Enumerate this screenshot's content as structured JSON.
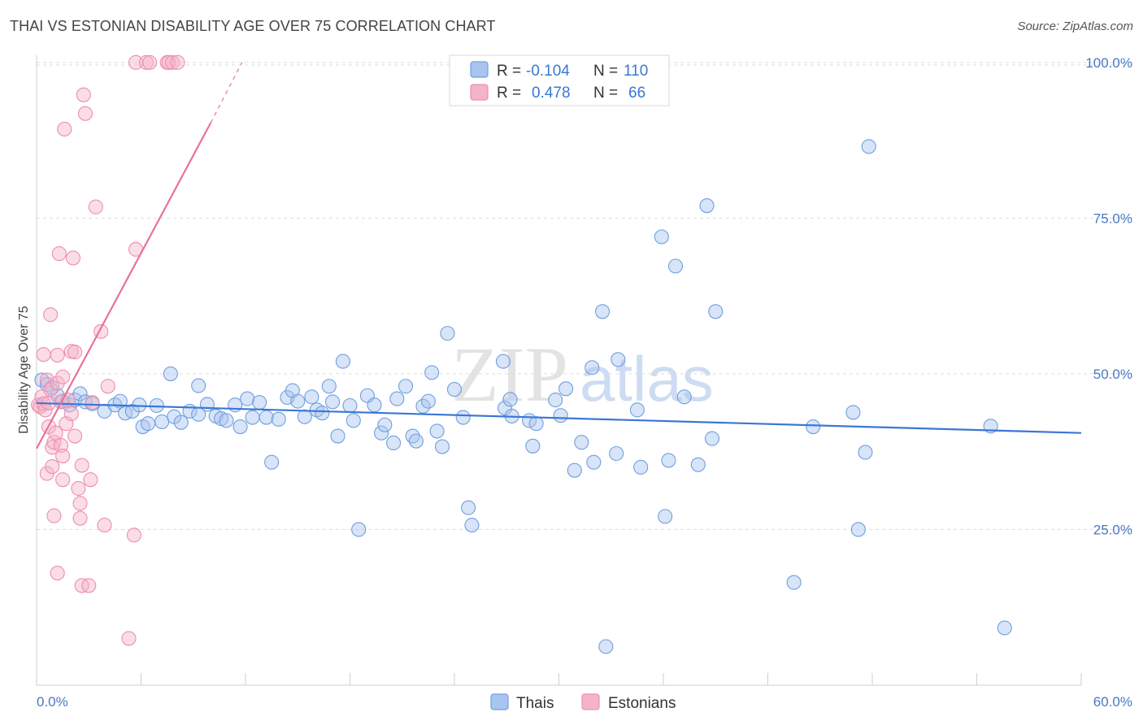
{
  "title": "THAI VS ESTONIAN DISABILITY AGE OVER 75 CORRELATION CHART",
  "source": "Source: ZipAtlas.com",
  "watermark": {
    "zip": "ZIP",
    "atlas": "atlas"
  },
  "legend_box": {
    "rows": [
      {
        "r_label": "R =",
        "r_value": "-0.104",
        "n_label": "N =",
        "n_value": "110",
        "color": "#a9c4ee"
      },
      {
        "r_label": "R =",
        "r_value": "0.478",
        "n_label": "N =",
        "n_value": "66",
        "color": "#f4b4c8"
      }
    ]
  },
  "bottom_legend": [
    {
      "label": "Thais",
      "color": "#a9c4ee"
    },
    {
      "label": "Estonians",
      "color": "#f4b4c8"
    }
  ],
  "chart_data": {
    "type": "scatter",
    "title": "THAI VS ESTONIAN DISABILITY AGE OVER 75 CORRELATION CHART",
    "xlabel": "",
    "ylabel": "Disability Age Over 75",
    "xlim": [
      0,
      60
    ],
    "ylim": [
      0,
      103
    ],
    "x_tick_labels": [
      "0.0%",
      "60.0%"
    ],
    "y_tick_values": [
      25,
      50,
      75,
      100
    ],
    "y_tick_labels": [
      "25.0%",
      "50.0%",
      "75.0%",
      "100.0%"
    ],
    "grid": true,
    "legend_position": "top-center",
    "series": [
      {
        "name": "Thais",
        "color": "#6f9fe0",
        "trend": {
          "x": [
            0,
            60
          ],
          "y": [
            45.3,
            40.5
          ],
          "color": "#3a77d4"
        },
        "points": [
          [
            0.3,
            49.0
          ],
          [
            0.6,
            48.3
          ],
          [
            0.9,
            47.8
          ],
          [
            1.2,
            46.5
          ],
          [
            1.5,
            45.6
          ],
          [
            1.9,
            45.0
          ],
          [
            2.2,
            45.8
          ],
          [
            2.5,
            46.8
          ],
          [
            2.8,
            45.5
          ],
          [
            3.2,
            45.2
          ],
          [
            3.9,
            44.0
          ],
          [
            4.5,
            45.0
          ],
          [
            4.8,
            45.6
          ],
          [
            5.1,
            43.7
          ],
          [
            5.5,
            44.0
          ],
          [
            5.9,
            45.0
          ],
          [
            6.1,
            41.5
          ],
          [
            6.4,
            42.0
          ],
          [
            6.9,
            44.9
          ],
          [
            7.2,
            42.3
          ],
          [
            7.7,
            50.0
          ],
          [
            7.9,
            43.1
          ],
          [
            8.3,
            42.2
          ],
          [
            8.8,
            44.0
          ],
          [
            9.3,
            43.5
          ],
          [
            9.3,
            48.1
          ],
          [
            9.8,
            45.1
          ],
          [
            10.3,
            43.2
          ],
          [
            10.6,
            42.8
          ],
          [
            10.9,
            42.5
          ],
          [
            11.4,
            45.0
          ],
          [
            11.7,
            41.5
          ],
          [
            12.1,
            46.0
          ],
          [
            12.4,
            43.0
          ],
          [
            12.8,
            45.4
          ],
          [
            13.2,
            43.0
          ],
          [
            13.5,
            35.8
          ],
          [
            13.9,
            42.7
          ],
          [
            14.4,
            46.2
          ],
          [
            14.7,
            47.3
          ],
          [
            15.0,
            45.6
          ],
          [
            15.4,
            43.1
          ],
          [
            15.8,
            46.3
          ],
          [
            16.1,
            44.2
          ],
          [
            16.4,
            43.7
          ],
          [
            16.8,
            48.0
          ],
          [
            17.0,
            45.5
          ],
          [
            17.3,
            40.0
          ],
          [
            17.6,
            52.0
          ],
          [
            18.0,
            44.9
          ],
          [
            18.2,
            42.5
          ],
          [
            18.5,
            25.0
          ],
          [
            19.0,
            46.5
          ],
          [
            19.4,
            45.0
          ],
          [
            19.8,
            40.5
          ],
          [
            20.0,
            41.8
          ],
          [
            20.5,
            38.9
          ],
          [
            20.7,
            46.0
          ],
          [
            21.2,
            48.0
          ],
          [
            21.6,
            40.0
          ],
          [
            21.8,
            39.2
          ],
          [
            22.2,
            44.8
          ],
          [
            22.5,
            45.6
          ],
          [
            22.7,
            50.2
          ],
          [
            23.0,
            40.8
          ],
          [
            23.3,
            38.3
          ],
          [
            23.6,
            56.5
          ],
          [
            24.0,
            47.5
          ],
          [
            24.5,
            43.0
          ],
          [
            24.8,
            28.5
          ],
          [
            25.0,
            25.7
          ],
          [
            26.8,
            52.0
          ],
          [
            26.9,
            44.5
          ],
          [
            27.2,
            45.9
          ],
          [
            27.3,
            43.2
          ],
          [
            28.3,
            42.5
          ],
          [
            28.5,
            38.4
          ],
          [
            28.7,
            42.0
          ],
          [
            29.8,
            45.8
          ],
          [
            30.1,
            43.3
          ],
          [
            30.4,
            47.6
          ],
          [
            30.9,
            34.5
          ],
          [
            31.3,
            39.0
          ],
          [
            31.9,
            51.0
          ],
          [
            32.0,
            35.8
          ],
          [
            32.5,
            60.0
          ],
          [
            32.7,
            6.2
          ],
          [
            33.3,
            37.2
          ],
          [
            33.4,
            52.3
          ],
          [
            34.5,
            44.2
          ],
          [
            34.7,
            35.0
          ],
          [
            35.9,
            72.0
          ],
          [
            36.1,
            27.1
          ],
          [
            36.3,
            36.1
          ],
          [
            36.7,
            67.3
          ],
          [
            37.2,
            46.3
          ],
          [
            38.0,
            35.4
          ],
          [
            38.5,
            77.0
          ],
          [
            38.8,
            39.6
          ],
          [
            39.0,
            60.0
          ],
          [
            43.5,
            16.5
          ],
          [
            44.6,
            41.5
          ],
          [
            46.9,
            43.8
          ],
          [
            47.2,
            25.0
          ],
          [
            47.6,
            37.4
          ],
          [
            47.8,
            86.5
          ],
          [
            54.8,
            41.6
          ],
          [
            55.6,
            9.2
          ]
        ]
      },
      {
        "name": "Estonians",
        "color": "#f08db0",
        "trend": {
          "x": [
            0,
            10.0
          ],
          "y": [
            38.0,
            90.3
          ],
          "dashed_to": [
            11.8,
            100.0
          ],
          "color": "#e8719c"
        },
        "points": [
          [
            0.1,
            45.0
          ],
          [
            0.2,
            44.7
          ],
          [
            0.3,
            46.3
          ],
          [
            0.4,
            45.2
          ],
          [
            0.4,
            53.1
          ],
          [
            0.5,
            44.2
          ],
          [
            0.6,
            49.0
          ],
          [
            0.6,
            34.0
          ],
          [
            0.7,
            45.3
          ],
          [
            0.7,
            41.5
          ],
          [
            0.8,
            47.5
          ],
          [
            0.8,
            59.5
          ],
          [
            0.9,
            38.2
          ],
          [
            0.9,
            35.1
          ],
          [
            1.0,
            39.0
          ],
          [
            1.0,
            27.2
          ],
          [
            1.1,
            40.5
          ],
          [
            1.2,
            48.5
          ],
          [
            1.2,
            53.0
          ],
          [
            1.2,
            18.0
          ],
          [
            1.3,
            69.3
          ],
          [
            1.4,
            45.5
          ],
          [
            1.4,
            38.5
          ],
          [
            1.5,
            36.8
          ],
          [
            1.5,
            49.5
          ],
          [
            1.5,
            33.0
          ],
          [
            1.6,
            89.3
          ],
          [
            1.7,
            42.0
          ],
          [
            1.8,
            45.8
          ],
          [
            2.0,
            53.6
          ],
          [
            2.0,
            43.6
          ],
          [
            2.1,
            68.6
          ],
          [
            2.2,
            53.5
          ],
          [
            2.2,
            40.0
          ],
          [
            2.4,
            31.6
          ],
          [
            2.5,
            26.8
          ],
          [
            2.5,
            29.2
          ],
          [
            2.6,
            16.0
          ],
          [
            2.6,
            35.3
          ],
          [
            2.7,
            94.8
          ],
          [
            2.8,
            91.8
          ],
          [
            3.0,
            16.0
          ],
          [
            3.1,
            33.0
          ],
          [
            3.2,
            45.4
          ],
          [
            3.4,
            76.8
          ],
          [
            3.7,
            56.8
          ],
          [
            3.9,
            25.7
          ],
          [
            4.1,
            48.0
          ],
          [
            5.3,
            7.5
          ],
          [
            5.6,
            24.1
          ],
          [
            5.7,
            70.0
          ],
          [
            5.7,
            100.0
          ],
          [
            6.3,
            100.0
          ],
          [
            6.5,
            100.0
          ],
          [
            7.5,
            100.0
          ],
          [
            7.6,
            100.0
          ],
          [
            7.8,
            100.0
          ],
          [
            8.1,
            100.0
          ]
        ]
      }
    ]
  }
}
